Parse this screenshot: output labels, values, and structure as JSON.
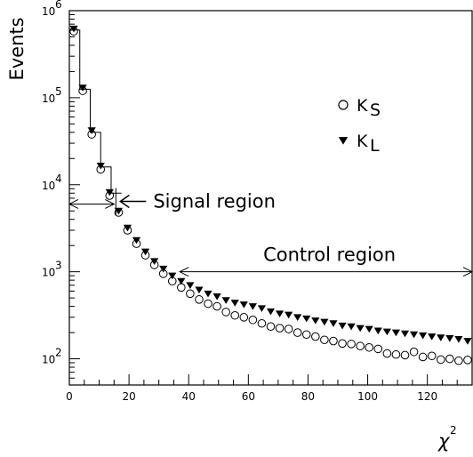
{
  "chart_data": {
    "type": "scatter",
    "title": "",
    "xlabel": "χ",
    "xlabel_superscript": "2",
    "ylabel": "Events",
    "xlim": [
      0,
      135
    ],
    "ylim": [
      50,
      1000000
    ],
    "y_scale": "log",
    "grid": false,
    "legend_placement": "top-right",
    "x_ticks": [
      0,
      20,
      40,
      60,
      80,
      100,
      120
    ],
    "y_ticks": [
      {
        "base": "10",
        "exp": "2",
        "value": 100
      },
      {
        "base": "10",
        "exp": "3",
        "value": 1000
      },
      {
        "base": "10",
        "exp": "4",
        "value": 10000
      },
      {
        "base": "10",
        "exp": "5",
        "value": 100000
      },
      {
        "base": "10",
        "exp": "6",
        "value": 1000000
      }
    ],
    "step_histogram": {
      "name": "",
      "bin_edges": [
        0,
        3.5,
        7,
        10.5,
        14,
        17.5
      ],
      "values": [
        600000,
        125000,
        40000,
        16000,
        8000
      ]
    },
    "series": [
      {
        "name": "K",
        "name_subscript": "S",
        "marker": "open-circle",
        "x": [
          1.5,
          4.5,
          7.5,
          10.5,
          13.5,
          16.5,
          19.5,
          22.5,
          25.5,
          28.5,
          31.5,
          34.5,
          37.5,
          40.5,
          43.5,
          46.5,
          49.5,
          52.5,
          55.5,
          58.5,
          61.5,
          64.5,
          67.5,
          70.5,
          73.5,
          76.5,
          79.5,
          82.5,
          85.5,
          88.5,
          91.5,
          94.5,
          97.5,
          100.5,
          103.5,
          106.5,
          109.5,
          112.5,
          115.5,
          118.5,
          121.5,
          124.5,
          127.5,
          130.5,
          133.5
        ],
        "y": [
          580000,
          120000,
          38000,
          15000,
          7500,
          4800,
          3000,
          2100,
          1550,
          1200,
          950,
          780,
          660,
          560,
          480,
          430,
          400,
          345,
          315,
          300,
          280,
          255,
          235,
          225,
          220,
          200,
          190,
          180,
          165,
          160,
          150,
          148,
          140,
          135,
          130,
          115,
          112,
          110,
          120,
          105,
          108,
          98,
          100,
          95,
          97
        ]
      },
      {
        "name": "K",
        "name_subscript": "L",
        "marker": "filled-triangle-down",
        "x": [
          1.5,
          4.5,
          7.5,
          10.5,
          13.5,
          16.5,
          19.5,
          22.5,
          25.5,
          28.5,
          31.5,
          34.5,
          37.5,
          40.5,
          43.5,
          46.5,
          49.5,
          52.5,
          55.5,
          58.5,
          61.5,
          64.5,
          67.5,
          70.5,
          73.5,
          76.5,
          79.5,
          82.5,
          85.5,
          88.5,
          91.5,
          94.5,
          97.5,
          100.5,
          103.5,
          106.5,
          109.5,
          112.5,
          115.5,
          118.5,
          121.5,
          124.5,
          127.5,
          130.5,
          133.5
        ],
        "y": [
          620000,
          130000,
          42000,
          16500,
          8200,
          5000,
          3200,
          2300,
          1700,
          1320,
          1080,
          900,
          780,
          700,
          620,
          560,
          520,
          470,
          440,
          420,
          400,
          380,
          350,
          330,
          320,
          300,
          290,
          275,
          265,
          255,
          240,
          235,
          225,
          220,
          210,
          205,
          200,
          195,
          190,
          185,
          180,
          175,
          172,
          168,
          160
        ]
      }
    ],
    "annotations": [
      {
        "id": "signal",
        "text": "Signal region",
        "x_from": 0,
        "x_to": 15,
        "y": 6000
      },
      {
        "id": "control",
        "text": "Control region",
        "x_from": 37,
        "x_to": 135,
        "y": 1000
      }
    ]
  }
}
